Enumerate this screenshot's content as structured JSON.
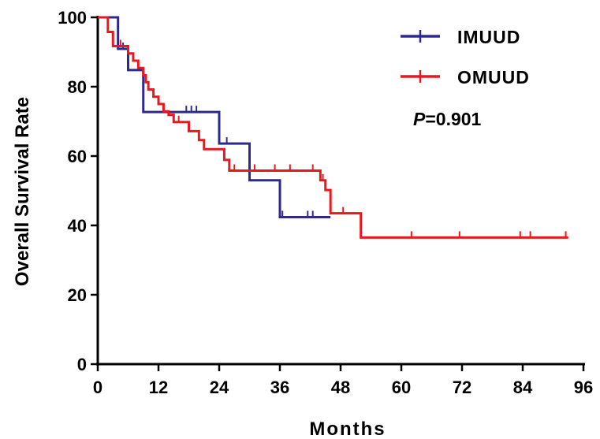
{
  "chart_data": {
    "type": "line",
    "subtype": "kaplan-meier step",
    "xlabel": "Months",
    "ylabel": "Overall Survival Rate",
    "xlim": [
      0,
      96
    ],
    "ylim": [
      0,
      100
    ],
    "xticks": [
      "0",
      "12",
      "24",
      "36",
      "48",
      "60",
      "72",
      "84",
      "96"
    ],
    "yticks": [
      "0",
      "20",
      "40",
      "60",
      "80",
      "100"
    ],
    "grid": false,
    "legend_position": "top-right",
    "annotation": {
      "italic": "P",
      "rest": "=0.901"
    },
    "series": [
      {
        "name": "IMUUD",
        "color": "#2e2a8c",
        "steps": [
          [
            0,
            100
          ],
          [
            4,
            90.9
          ],
          [
            6,
            84.8
          ],
          [
            9,
            72.7
          ],
          [
            24,
            63.6
          ],
          [
            30,
            53.0
          ],
          [
            36,
            42.4
          ],
          [
            46,
            42.4
          ]
        ],
        "censored": [
          [
            5,
            90.9
          ],
          [
            17.5,
            72.7
          ],
          [
            18.5,
            72.7
          ],
          [
            19.5,
            72.7
          ],
          [
            25.5,
            63.6
          ],
          [
            36.5,
            42.4
          ],
          [
            41.5,
            42.4
          ],
          [
            42.5,
            42.4
          ]
        ]
      },
      {
        "name": "OMUUD",
        "color": "#e8181f",
        "steps": [
          [
            0,
            100
          ],
          [
            2,
            95.8
          ],
          [
            3,
            91.7
          ],
          [
            6,
            89.6
          ],
          [
            7,
            87.5
          ],
          [
            8,
            85.4
          ],
          [
            9,
            83.3
          ],
          [
            9.5,
            81.3
          ],
          [
            10,
            79.2
          ],
          [
            11,
            77.1
          ],
          [
            12,
            75.0
          ],
          [
            13,
            72.9
          ],
          [
            14,
            71.9
          ],
          [
            15,
            69.8
          ],
          [
            18,
            67.2
          ],
          [
            20,
            64.6
          ],
          [
            21,
            62.0
          ],
          [
            25,
            58.9
          ],
          [
            26,
            55.8
          ],
          [
            44,
            53.0
          ],
          [
            45,
            50.2
          ],
          [
            46,
            43.5
          ],
          [
            52,
            36.5
          ],
          [
            93,
            36.5
          ]
        ],
        "censored": [
          [
            4.5,
            91.7
          ],
          [
            16,
            69.8
          ],
          [
            27,
            55.8
          ],
          [
            31,
            55.8
          ],
          [
            35,
            55.8
          ],
          [
            38,
            55.8
          ],
          [
            42.5,
            55.8
          ],
          [
            44.5,
            53.0
          ],
          [
            48.5,
            43.5
          ],
          [
            62,
            36.5
          ],
          [
            71.5,
            36.5
          ],
          [
            83.5,
            36.5
          ],
          [
            85.5,
            36.5
          ],
          [
            92.5,
            36.5
          ]
        ]
      }
    ]
  }
}
